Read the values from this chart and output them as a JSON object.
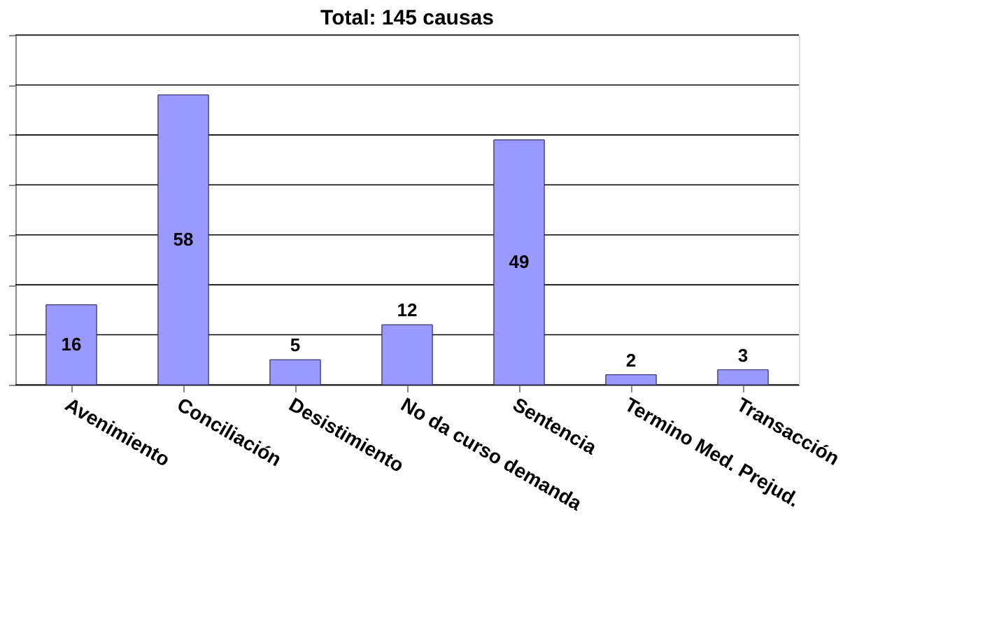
{
  "chart_data": {
    "type": "bar",
    "title": "Total: 145 causas",
    "categories": [
      "Avenimiento",
      "Conciliación",
      "Desistimiento",
      "No da curso demanda",
      "Sentencia",
      "Termino Med. Prejud.",
      "Transacción"
    ],
    "values": [
      16,
      58,
      5,
      12,
      49,
      2,
      3
    ],
    "color": "#9999ff",
    "ylim": [
      0,
      70
    ],
    "yticks": [
      {
        "value": 0,
        "label": null
      },
      {
        "value": 10,
        "label": null
      },
      {
        "value": 20,
        "label": null
      },
      {
        "value": 30,
        "label": null
      },
      {
        "value": 40,
        "label": null
      },
      {
        "value": 50,
        "label": null
      },
      {
        "value": 60,
        "label": null
      },
      {
        "value": 70,
        "label": null
      }
    ],
    "grid": "y",
    "tick_labels": "x",
    "data_labels": true
  }
}
